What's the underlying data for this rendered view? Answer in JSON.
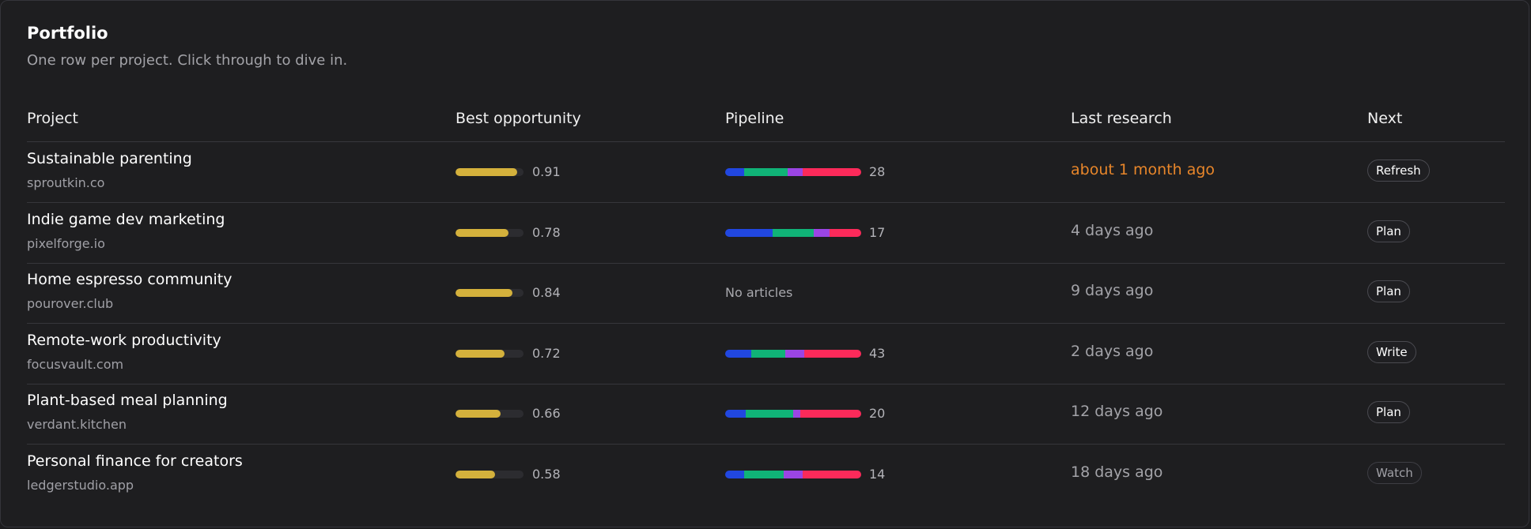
{
  "header": {
    "title": "Portfolio",
    "subtitle": "One row per project. Click through to dive in."
  },
  "columns": {
    "project": "Project",
    "best_opportunity": "Best opportunity",
    "pipeline": "Pipeline",
    "last_research": "Last research",
    "next": "Next"
  },
  "colors": {
    "opportunity": "#d4b13c",
    "pipeline_blue": "#2147e0",
    "pipeline_green": "#10b377",
    "pipeline_purple": "#9b45e4",
    "pipeline_red": "#fc2a5a",
    "stale": "#e8862a"
  },
  "rows": [
    {
      "name": "Sustainable parenting",
      "domain": "sproutkin.co",
      "opportunity": 0.91,
      "opportunity_label": "0.91",
      "pipeline": [
        0.14,
        0.32,
        0.11,
        0.43
      ],
      "pipeline_count": "28",
      "no_articles": "",
      "last_research": "about 1 month ago",
      "stale": true,
      "next": "Refresh",
      "muted": false
    },
    {
      "name": "Indie game dev marketing",
      "domain": "pixelforge.io",
      "opportunity": 0.78,
      "opportunity_label": "0.78",
      "pipeline": [
        0.35,
        0.3,
        0.12,
        0.23
      ],
      "pipeline_count": "17",
      "no_articles": "",
      "last_research": "4 days ago",
      "stale": false,
      "next": "Plan",
      "muted": false
    },
    {
      "name": "Home espresso community",
      "domain": "pourover.club",
      "opportunity": 0.84,
      "opportunity_label": "0.84",
      "pipeline": [],
      "pipeline_count": "",
      "no_articles": "No articles",
      "last_research": "9 days ago",
      "stale": false,
      "next": "Plan",
      "muted": false
    },
    {
      "name": "Remote-work productivity",
      "domain": "focusvault.com",
      "opportunity": 0.72,
      "opportunity_label": "0.72",
      "pipeline": [
        0.19,
        0.25,
        0.14,
        0.42
      ],
      "pipeline_count": "43",
      "no_articles": "",
      "last_research": "2 days ago",
      "stale": false,
      "next": "Write",
      "muted": false
    },
    {
      "name": "Plant-based meal planning",
      "domain": "verdant.kitchen",
      "opportunity": 0.66,
      "opportunity_label": "0.66",
      "pipeline": [
        0.15,
        0.35,
        0.05,
        0.45
      ],
      "pipeline_count": "20",
      "no_articles": "",
      "last_research": "12 days ago",
      "stale": false,
      "next": "Plan",
      "muted": false
    },
    {
      "name": "Personal finance for creators",
      "domain": "ledgerstudio.app",
      "opportunity": 0.58,
      "opportunity_label": "0.58",
      "pipeline": [
        0.14,
        0.29,
        0.14,
        0.43
      ],
      "pipeline_count": "14",
      "no_articles": "",
      "last_research": "18 days ago",
      "stale": false,
      "next": "Watch",
      "muted": true
    }
  ]
}
